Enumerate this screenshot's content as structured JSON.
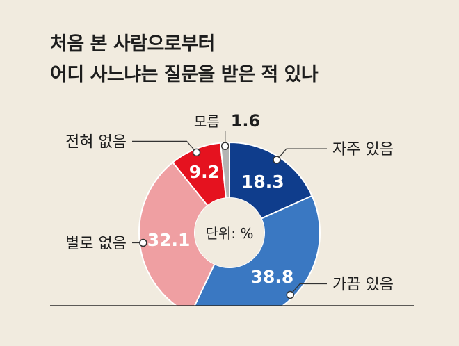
{
  "title_lines": [
    "처음 본 사람으로부터",
    "어디 사느냐는 질문을 받은 적 있나"
  ],
  "chart_data": {
    "type": "pie",
    "unit_label": "단위: %",
    "slices": [
      {
        "label": "자주 있음",
        "value": 18.3,
        "value_label": "18.3",
        "color": "#0f3d8c"
      },
      {
        "label": "가끔 있음",
        "value": 38.8,
        "value_label": "38.8",
        "color": "#3a78c2"
      },
      {
        "label": "별로 없음",
        "value": 32.1,
        "value_label": "32.1",
        "color": "#ef9fa2"
      },
      {
        "label": "전혀 없음",
        "value": 9.2,
        "value_label": "9.2",
        "color": "#e5121f"
      },
      {
        "label": "모름",
        "value": 1.6,
        "value_label": "1.6",
        "color": "#b3b3b3"
      }
    ]
  }
}
